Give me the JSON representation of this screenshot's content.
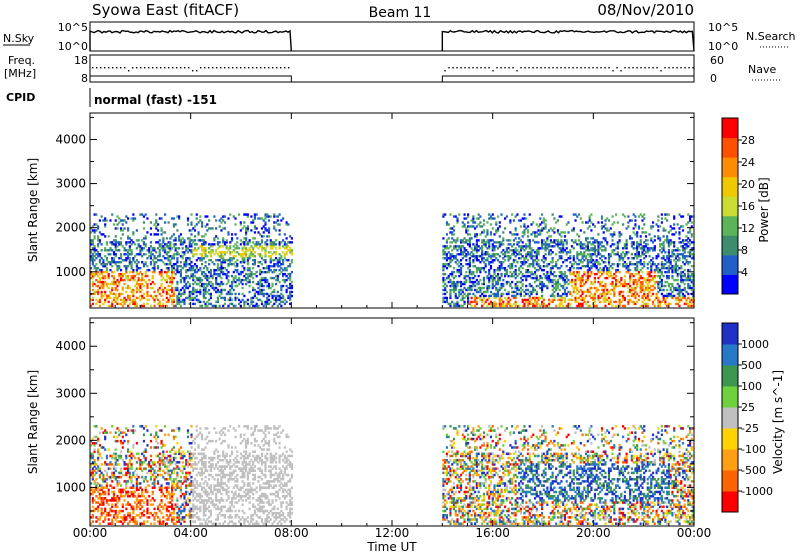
{
  "header": {
    "left_title": "Syowa East (fitACF)",
    "center_title": "Beam 11",
    "right_title": "08/Nov/2010"
  },
  "strip_labels": {
    "nsky": "N.Sky",
    "nsearch": "N.Search",
    "freq_line1": "Freq.",
    "freq_line2": "[MHz]",
    "nave": "Nave",
    "cpid": "CPID",
    "cpid_text": "normal (fast) -151"
  },
  "strip_ticks": {
    "noise_left": [
      "10^5",
      "10^0"
    ],
    "noise_right": [
      "10^5",
      "10^0"
    ],
    "freq_left": [
      "18",
      "8"
    ],
    "freq_right": [
      "60",
      "0"
    ]
  },
  "colors": {
    "power_scale": [
      "#0000ff",
      "#2060c8",
      "#3c8c6e",
      "#5ab45a",
      "#c8dc32",
      "#f0c800",
      "#ff8c00",
      "#ff5000",
      "#ff0000"
    ],
    "velocity_scale": [
      "#ff0000",
      "#ff6400",
      "#ffa014",
      "#ffd200",
      "#c0c0c0",
      "#6ed23c",
      "#3c9650",
      "#2878c8",
      "#1e32c8"
    ]
  },
  "chart_data": [
    {
      "type": "heatmap",
      "title": "Power",
      "xlabel": "Time UT",
      "ylabel": "Slant Range [km]",
      "x_ticks": [
        "00:00",
        "04:00",
        "08:00",
        "12:00",
        "16:00",
        "20:00",
        "00:00"
      ],
      "y_ticks": [
        "1000",
        "2000",
        "3000",
        "4000"
      ],
      "xlim_hours": [
        0,
        24
      ],
      "ylim_km": [
        180,
        4600
      ],
      "colorbar_label": "Power [dB]",
      "colorbar_ticks": [
        "4",
        "8",
        "12",
        "16",
        "20",
        "24",
        "28"
      ],
      "colorbar_range": [
        0,
        30
      ],
      "data_intervals_hours": [
        [
          0,
          8
        ],
        [
          14,
          24
        ]
      ],
      "data_max_range_km": 2300
    },
    {
      "type": "heatmap",
      "title": "Velocity",
      "xlabel": "Time UT",
      "ylabel": "Slant Range [km]",
      "x_ticks": [
        "00:00",
        "04:00",
        "08:00",
        "12:00",
        "16:00",
        "20:00",
        "00:00"
      ],
      "y_ticks": [
        "1000",
        "2000",
        "3000",
        "4000"
      ],
      "xlim_hours": [
        0,
        24
      ],
      "ylim_km": [
        180,
        4600
      ],
      "colorbar_label": "Velocity [m s^-1]",
      "colorbar_ticks": [
        "-1000",
        "-500",
        "-100",
        "-25",
        "25",
        "100",
        "500",
        "1000"
      ],
      "data_intervals_hours": [
        [
          0,
          8
        ],
        [
          14,
          24
        ]
      ],
      "data_max_range_km": 2300
    }
  ]
}
